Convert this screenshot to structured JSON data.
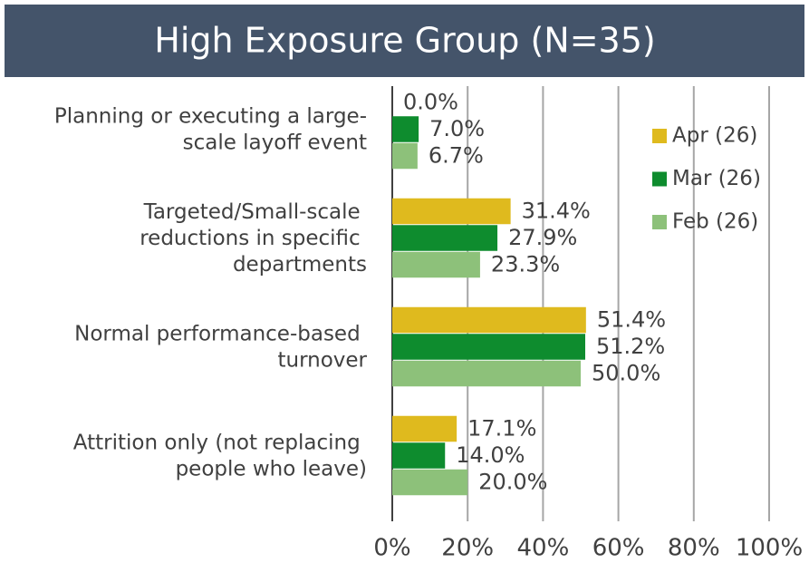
{
  "chart_data": {
    "type": "barh",
    "title": "High Exposure Group (N=35)",
    "categories": [
      "Planning or executing a large-scale layoff event",
      "Targeted/Small-scale reductions in specific departments",
      "Normal performance-based turnover",
      "Attrition only (not replacing people who leave)"
    ],
    "series": [
      {
        "name": "Apr (26)",
        "color": "#dfba1e",
        "values": [
          0.0,
          31.4,
          51.4,
          17.1
        ],
        "value_labels": [
          "0.0%",
          "31.4%",
          "51.4%",
          "17.1%"
        ]
      },
      {
        "name": "Mar (26)",
        "color": "#0e8c2e",
        "values": [
          7.0,
          27.9,
          51.2,
          14.0
        ],
        "value_labels": [
          "7.0%",
          "27.9%",
          "51.2%",
          "14.0%"
        ]
      },
      {
        "name": "Feb (26)",
        "color": "#8dc17a",
        "values": [
          6.7,
          23.3,
          50.0,
          20.0
        ],
        "value_labels": [
          "6.7%",
          "23.3%",
          "50.0%",
          "20.0%"
        ]
      }
    ],
    "xlim": [
      0,
      100
    ],
    "xticks": [
      {
        "value": 0,
        "label": "0%"
      },
      {
        "value": 20,
        "label": "20%"
      },
      {
        "value": 40,
        "label": "40%"
      },
      {
        "value": 60,
        "label": "60%"
      },
      {
        "value": 80,
        "label": "80%"
      },
      {
        "value": 100,
        "label": "100%"
      }
    ],
    "grid": true,
    "legend": "right"
  }
}
